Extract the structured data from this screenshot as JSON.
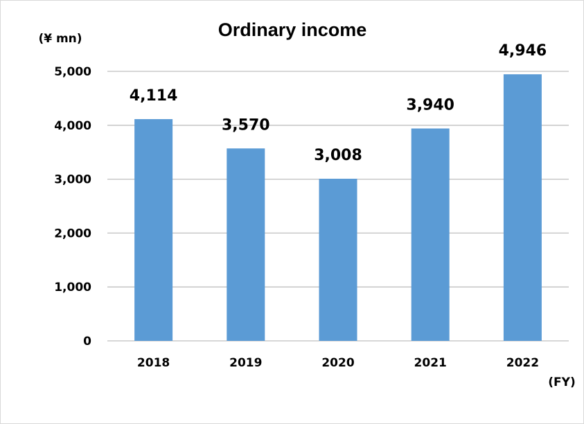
{
  "chart_data": {
    "type": "bar",
    "title": "Ordinary income",
    "ylabel": "(¥ mn)",
    "xlabel": "(FY)",
    "categories": [
      "2018",
      "2019",
      "2020",
      "2021",
      "2022"
    ],
    "values": [
      4114,
      3570,
      3008,
      3940,
      4946
    ],
    "value_labels": [
      "4,114",
      "3,570",
      "3,008",
      "3,940",
      "4,946"
    ],
    "yticks": [
      0,
      1000,
      2000,
      3000,
      4000,
      5000
    ],
    "ytick_labels": [
      "0",
      "1,000",
      "2,000",
      "3,000",
      "4,000",
      "5,000"
    ],
    "ylim": [
      0,
      5000
    ],
    "grid": true,
    "legend": "none",
    "bar_color": "#5b9bd5",
    "grid_color": "#bfbfbf"
  }
}
